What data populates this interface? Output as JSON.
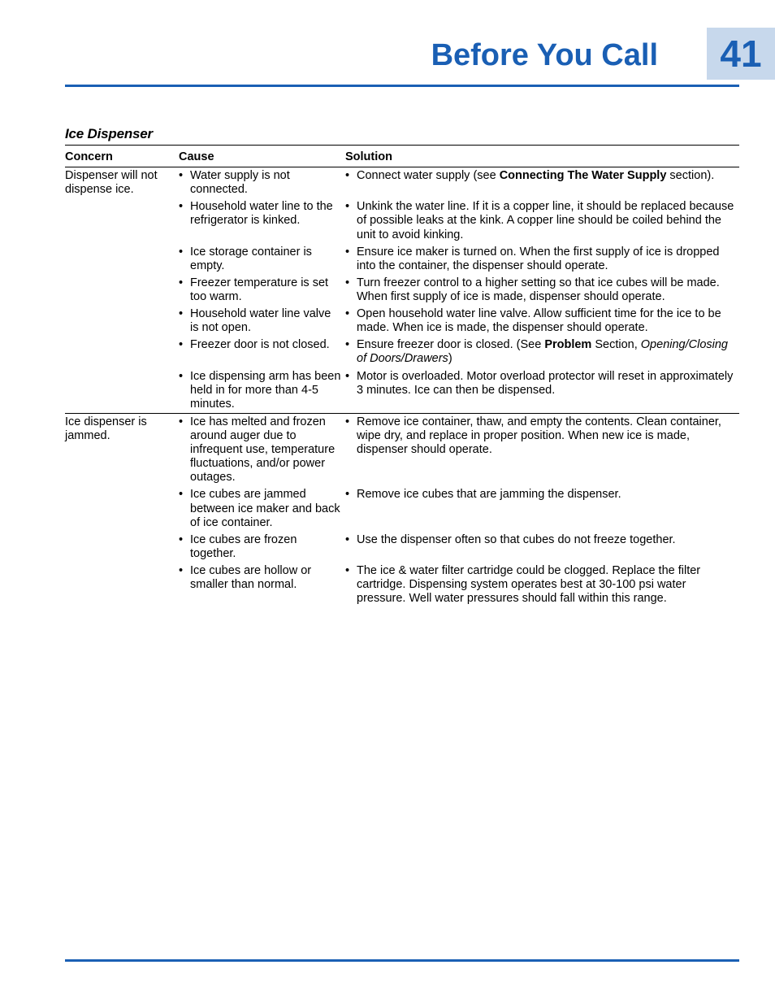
{
  "header": {
    "title": "Before You Call",
    "page_number": "41"
  },
  "colors": {
    "accent": "#1a5fb4",
    "sidebar_bg": "#c7d8ec"
  },
  "section": {
    "title": "Ice Dispenser",
    "columns": {
      "c1": "Concern",
      "c2": "Cause",
      "c3": "Solution"
    }
  },
  "rows": [
    {
      "concern": "Dispenser will not dispense ice.",
      "items": [
        {
          "cause": "Water supply is not connected.",
          "solution_pre": "Connect water supply (see ",
          "solution_bold": "Connecting The Water Supply",
          "solution_post": " section)."
        },
        {
          "cause": "Household water line to the refrigerator is kinked.",
          "solution": "Unkink the water line. If it is a copper line, it should be replaced because of possible leaks at the kink. A copper line should be coiled behind the unit to avoid kinking."
        },
        {
          "cause": "Ice storage container is empty.",
          "solution": "Ensure ice maker is turned on. When the first supply of ice is dropped into the container, the dispenser should operate."
        },
        {
          "cause": "Freezer temperature is set too warm.",
          "solution": "Turn freezer control to a higher setting so that ice cubes will be made. When first supply of ice is made, dispenser should operate."
        },
        {
          "cause": "Household water line valve is not open.",
          "solution": "Open household water line valve. Allow sufficient time for the ice to be made. When ice is made, the dispenser should operate."
        },
        {
          "cause": "Freezer door is not closed.",
          "solution_pre": "Ensure freezer door is closed. (See ",
          "solution_bold": "Problem",
          "solution_post": " Section, ",
          "solution_ital": "Opening/Closing of Doors/Drawers",
          "solution_tail": ")"
        },
        {
          "cause": "Ice dispensing arm has been held in for more than 4-5 minutes.",
          "solution": "Motor is overloaded. Motor overload protector will reset in approximately 3 minutes. Ice can then be dispensed."
        }
      ]
    },
    {
      "concern": "Ice dispenser is jammed.",
      "items": [
        {
          "cause": "Ice has melted and frozen around auger due to infrequent use, temperature fluctuations, and/or power outages.",
          "solution": "Remove ice container, thaw, and empty the contents. Clean container, wipe dry, and replace in proper position. When new ice is made, dispenser should operate."
        },
        {
          "cause": "Ice cubes are jammed between ice maker and back of ice container.",
          "solution": "Remove ice cubes that are jamming the dispenser."
        },
        {
          "cause": "Ice cubes are frozen together.",
          "solution": "Use the dispenser often so that cubes do not freeze together."
        },
        {
          "cause": "Ice cubes are hollow or smaller than normal.",
          "solution": "The ice & water filter cartridge could be clogged. Replace the filter cartridge. Dispensing system operates best at 30-100 psi water pressure. Well water pressures should fall within this range."
        }
      ]
    }
  ]
}
